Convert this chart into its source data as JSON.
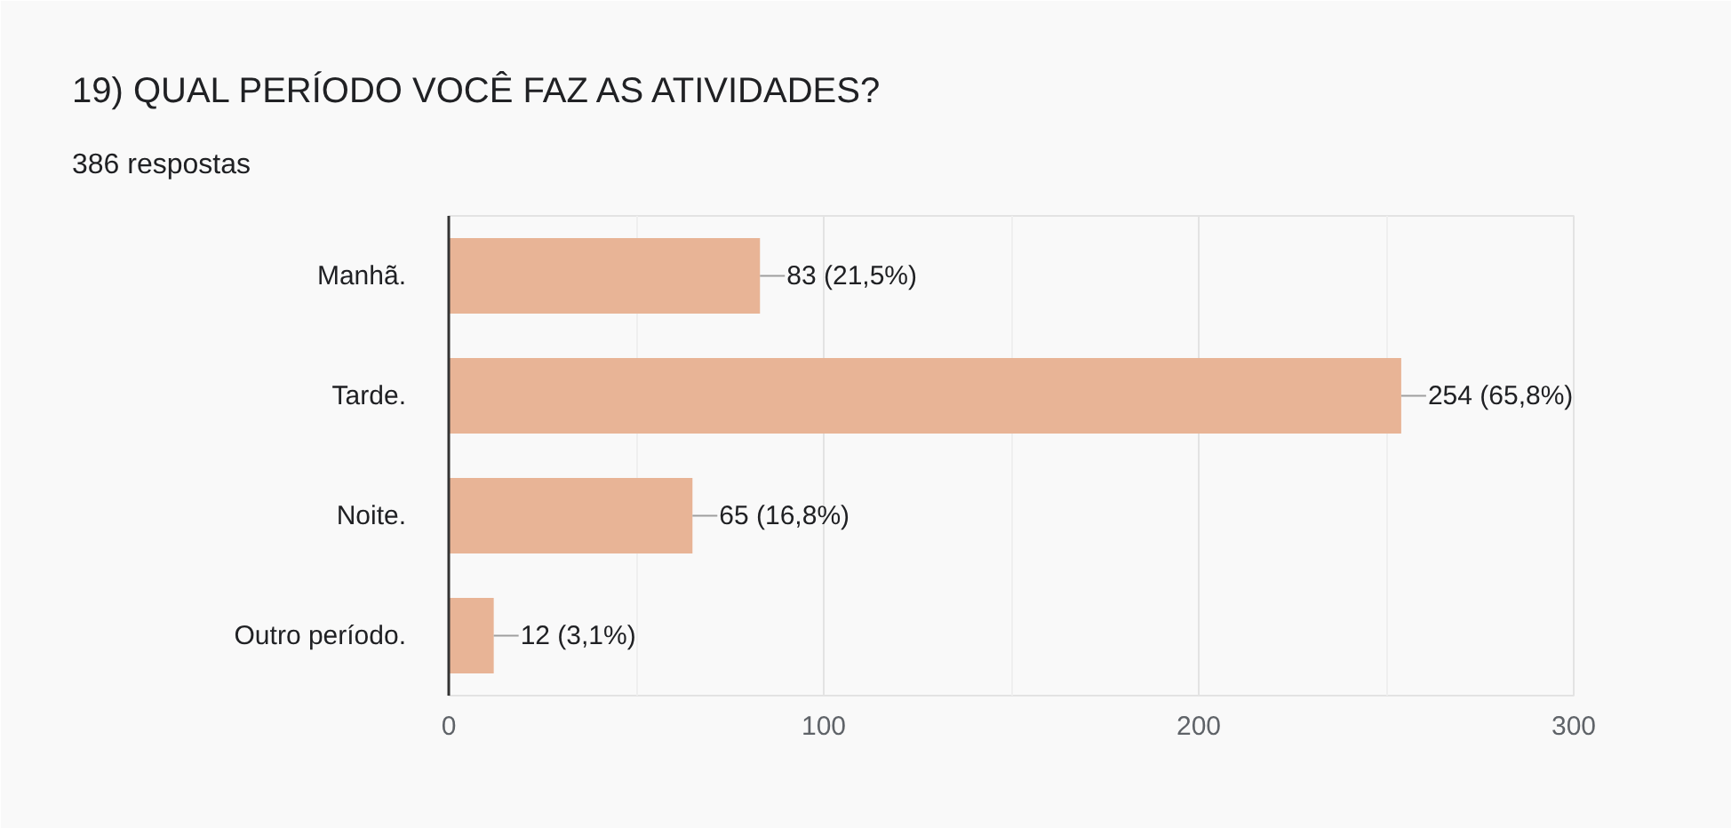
{
  "chart_data": {
    "type": "bar",
    "orientation": "horizontal",
    "title": "19) QUAL PERÍODO VOCÊ FAZ AS ATIVIDADES?",
    "subtitle": "386 respostas",
    "categories": [
      "Manhã.",
      "Tarde.",
      "Noite.",
      "Outro período."
    ],
    "values": [
      83,
      254,
      65,
      12
    ],
    "color": "#e8b496",
    "value_labels": [
      "83 (21,5%)",
      "254 (65,8%)",
      "65 (16,8%)",
      "12 (3,1%)"
    ],
    "xlim": [
      0,
      300
    ],
    "xticks": [
      0,
      {
        "value": 50,
        "label": null
      },
      100,
      {
        "value": 150,
        "label": null
      },
      200,
      {
        "value": 250,
        "label": null
      },
      300
    ],
    "grid": "x"
  }
}
